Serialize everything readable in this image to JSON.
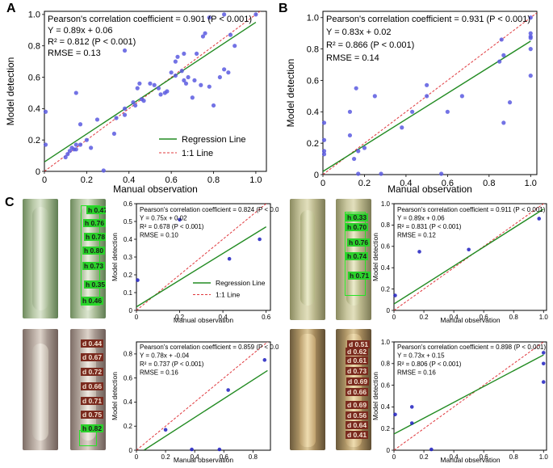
{
  "colors": {
    "regression": "#228b22",
    "identity": "#e0393e",
    "points": "#5b5be0",
    "points_dark": "#1f1fbf",
    "green_tag": "#2bd12b",
    "brown_tag": "#7a2a1e"
  },
  "panel_labels": {
    "a": "A",
    "b": "B",
    "c": "C"
  },
  "chart_data": [
    {
      "id": "A",
      "type": "scatter",
      "xlabel": "Manual observation",
      "ylabel": "Model detection",
      "xlim": [
        0,
        1.05
      ],
      "ylim": [
        0,
        1.02
      ],
      "xticks": [
        "0",
        "0.2",
        "0.4",
        "0.6",
        "0.8",
        "1.0"
      ],
      "yticks": [
        "0",
        "0.2",
        "0.4",
        "0.6",
        "0.8",
        "1.0"
      ],
      "stats": [
        "Pearson's correlation coefficient = 0.901 (P < 0.001)",
        "Y = 0.89x + 0.06",
        "R² = 0.812 (P < 0.001)",
        "RMSE = 0.13"
      ],
      "regression": {
        "slope": 0.89,
        "intercept": 0.06
      },
      "legend": [
        "Regression Line",
        "1:1 Line"
      ],
      "points": [
        [
          0,
          0.38
        ],
        [
          0,
          0.17
        ],
        [
          0.1,
          0.09
        ],
        [
          0.11,
          0.11
        ],
        [
          0.12,
          0.13
        ],
        [
          0.13,
          0.15
        ],
        [
          0.14,
          0.14
        ],
        [
          0.15,
          0.14
        ],
        [
          0.15,
          0.17
        ],
        [
          0.17,
          0.17
        ],
        [
          0.15,
          0.5
        ],
        [
          0.17,
          0.3
        ],
        [
          0.2,
          0.2
        ],
        [
          0.22,
          0.15
        ],
        [
          0.25,
          0.33
        ],
        [
          0.28,
          0.0
        ],
        [
          0.33,
          0.24
        ],
        [
          0.34,
          0.34
        ],
        [
          0.38,
          0.36
        ],
        [
          0.38,
          0.4
        ],
        [
          0.38,
          0.77
        ],
        [
          0.42,
          0.44
        ],
        [
          0.43,
          0.42
        ],
        [
          0.44,
          0.53
        ],
        [
          0.45,
          0.56
        ],
        [
          0.46,
          0.46
        ],
        [
          0.47,
          0.45
        ],
        [
          0.5,
          0.56
        ],
        [
          0.52,
          0.55
        ],
        [
          0.54,
          0.53
        ],
        [
          0.55,
          0.49
        ],
        [
          0.57,
          0.5
        ],
        [
          0.58,
          0.51
        ],
        [
          0.6,
          0.63
        ],
        [
          0.62,
          0.61
        ],
        [
          0.62,
          0.7
        ],
        [
          0.63,
          0.73
        ],
        [
          0.65,
          0.64
        ],
        [
          0.66,
          0.75
        ],
        [
          0.66,
          0.58
        ],
        [
          0.67,
          0.56
        ],
        [
          0.68,
          0.6
        ],
        [
          0.7,
          0.47
        ],
        [
          0.71,
          0.58
        ],
        [
          0.72,
          0.75
        ],
        [
          0.74,
          0.55
        ],
        [
          0.75,
          0.86
        ],
        [
          0.76,
          0.88
        ],
        [
          0.78,
          0.54
        ],
        [
          0.8,
          0.42
        ],
        [
          0.83,
          0.6
        ],
        [
          0.85,
          0.65
        ],
        [
          0.87,
          0.63
        ],
        [
          0.88,
          0.87
        ],
        [
          0.9,
          0.8
        ],
        [
          0.78,
          0.98
        ],
        [
          0.85,
          1.0
        ],
        [
          1.0,
          1.0
        ]
      ]
    },
    {
      "id": "B",
      "type": "scatter",
      "xlabel": "Manual observation",
      "ylabel": "Model detection",
      "xlim": [
        0,
        1.03
      ],
      "ylim": [
        0,
        1.04
      ],
      "xticks": [
        "0",
        "0.2",
        "0.4",
        "0.6",
        "0.8",
        "1.0"
      ],
      "yticks": [
        "0",
        "0.2",
        "0.4",
        "0.6",
        "0.8",
        "1.0"
      ],
      "stats": [
        "Pearson's correlation coefficient = 0.931 (P < 0.001)",
        "Y = 0.83x + 0.02",
        "R² = 0.866 (P < 0.001)",
        "RMSE = 0.14"
      ],
      "regression": {
        "slope": 0.83,
        "intercept": 0.02
      },
      "points": [
        [
          0,
          0.33
        ],
        [
          0,
          0.22
        ],
        [
          0,
          0.15
        ],
        [
          0,
          0.13
        ],
        [
          0.13,
          0.4
        ],
        [
          0.13,
          0.25
        ],
        [
          0.15,
          0.1
        ],
        [
          0.16,
          0.55
        ],
        [
          0.17,
          0.15
        ],
        [
          0.17,
          0.0
        ],
        [
          0.2,
          0.17
        ],
        [
          0.25,
          0.5
        ],
        [
          0.28,
          0.0
        ],
        [
          0.38,
          0.3
        ],
        [
          0.43,
          0.4
        ],
        [
          0.5,
          0.5
        ],
        [
          0.5,
          0.57
        ],
        [
          0.57,
          0.0
        ],
        [
          0.6,
          0.4
        ],
        [
          0.67,
          0.5
        ],
        [
          0.85,
          0.72
        ],
        [
          0.86,
          0.86
        ],
        [
          0.87,
          0.76
        ],
        [
          0.87,
          0.33
        ],
        [
          0.9,
          0.46
        ],
        [
          1.0,
          1.0
        ],
        [
          1.0,
          0.9
        ],
        [
          1.0,
          0.88
        ],
        [
          1.0,
          0.87
        ],
        [
          1.0,
          0.8
        ],
        [
          1.0,
          0.63
        ]
      ]
    },
    {
      "id": "C1",
      "type": "scatter",
      "xlabel": "Manual observation",
      "ylabel": "Model detection",
      "xlim": [
        0,
        0.62
      ],
      "ylim": [
        0,
        0.6
      ],
      "xticks": [
        "0",
        "0.2",
        "0.4",
        "0.6"
      ],
      "yticks": [
        "0",
        "0.1",
        "0.2",
        "0.3",
        "0.4",
        "0.5",
        "0.6"
      ],
      "stats": [
        "Pearson's correlation coefficient = 0.824 (P < 0.001)",
        "Y = 0.75x + 0.02",
        "R² = 0.678 (P < 0.001)",
        "RMSE = 0.10"
      ],
      "regression": {
        "slope": 0.75,
        "intercept": 0.02
      },
      "legend": [
        "Regression Line",
        "1:1 Line"
      ],
      "points": [
        [
          0.0,
          0.17
        ],
        [
          0.2,
          0.51
        ],
        [
          0.43,
          0.29
        ],
        [
          0.57,
          0.4
        ]
      ]
    },
    {
      "id": "C2",
      "type": "scatter",
      "xlabel": "Manual observation",
      "ylabel": "Model detection",
      "xlim": [
        0,
        1.02
      ],
      "ylim": [
        0,
        1.0
      ],
      "xticks": [
        "0",
        "0.2",
        "0.4",
        "0.6",
        "0.8",
        "1.0"
      ],
      "yticks": [
        "0",
        "0.2",
        "0.4",
        "0.6",
        "0.8",
        "1.0"
      ],
      "stats": [
        "Pearson's correlation coefficient = 0.911 (P < 0.001)",
        "Y = 0.89x + 0.06",
        "R² = 0.831 (P < 0.001)",
        "RMSE = 0.12"
      ],
      "regression": {
        "slope": 0.89,
        "intercept": 0.06
      },
      "points": [
        [
          0.0,
          0.14
        ],
        [
          0.17,
          0.55
        ],
        [
          0.5,
          0.57
        ],
        [
          0.97,
          0.86
        ]
      ]
    },
    {
      "id": "C3",
      "type": "scatter",
      "xlabel": "Manual observation",
      "ylabel": "Model detection",
      "xlim": [
        0,
        0.92
      ],
      "ylim": [
        0,
        0.9
      ],
      "xticks": [
        "0",
        "0.2",
        "0.4",
        "0.6",
        "0.8"
      ],
      "yticks": [
        "0",
        "0.2",
        "0.4",
        "0.6",
        "0.8"
      ],
      "stats": [
        "Pearson's correlation coefficient = 0.859 (P < 0.001)",
        "Y = 0.78x + -0.04",
        "R² = 0.737 (P < 0.001)",
        "RMSE = 0.16"
      ],
      "regression": {
        "slope": 0.78,
        "intercept": -0.04
      },
      "points": [
        [
          0.2,
          0.17
        ],
        [
          0.38,
          0.0
        ],
        [
          0.57,
          0.0
        ],
        [
          0.63,
          0.5
        ],
        [
          0.88,
          0.75
        ]
      ]
    },
    {
      "id": "C4",
      "type": "scatter",
      "xlabel": "Manual observation",
      "ylabel": "Model detection",
      "xlim": [
        0,
        1.02
      ],
      "ylim": [
        0,
        1.0
      ],
      "xticks": [
        "0",
        "0.2",
        "0.4",
        "0.6",
        "0.8",
        "1.0"
      ],
      "yticks": [
        "0",
        "0.2",
        "0.4",
        "0.6",
        "0.8",
        "1.0"
      ],
      "stats": [
        "Pearson's correlation coefficient = 0.898 (P < 0.001)",
        "Y = 0.73x + 0.15",
        "R² = 0.806 (P < 0.001)",
        "RMSE = 0.16"
      ],
      "regression": {
        "slope": 0.73,
        "intercept": 0.15
      },
      "points": [
        [
          0.0,
          0.33
        ],
        [
          0.12,
          0.4
        ],
        [
          0.12,
          0.25
        ],
        [
          0.25,
          0.0
        ],
        [
          1.0,
          0.9
        ],
        [
          1.0,
          0.8
        ],
        [
          1.0,
          0.63
        ]
      ]
    }
  ],
  "detections": {
    "p1": [
      "h 0.47",
      "h 0.76",
      "h 0.78",
      "h 0.80",
      "h 0.73",
      "h 0.35",
      "h 0.46"
    ],
    "p2": [
      "h 0.33",
      "h 0.70",
      "h 0.76",
      "h 0.74",
      "h 0.71"
    ],
    "p3": [
      "d 0.44",
      "d 0.67",
      "d 0.72",
      "d 0.66",
      "d 0.71",
      "d 0.75",
      "h 0.82"
    ],
    "p4": [
      "d 0.51",
      "d 0.62",
      "d 0.61",
      "d 0.73",
      "d 0.69",
      "d 0.66",
      "d 0.69",
      "d 0.56",
      "d 0.64",
      "d 0.41"
    ]
  }
}
